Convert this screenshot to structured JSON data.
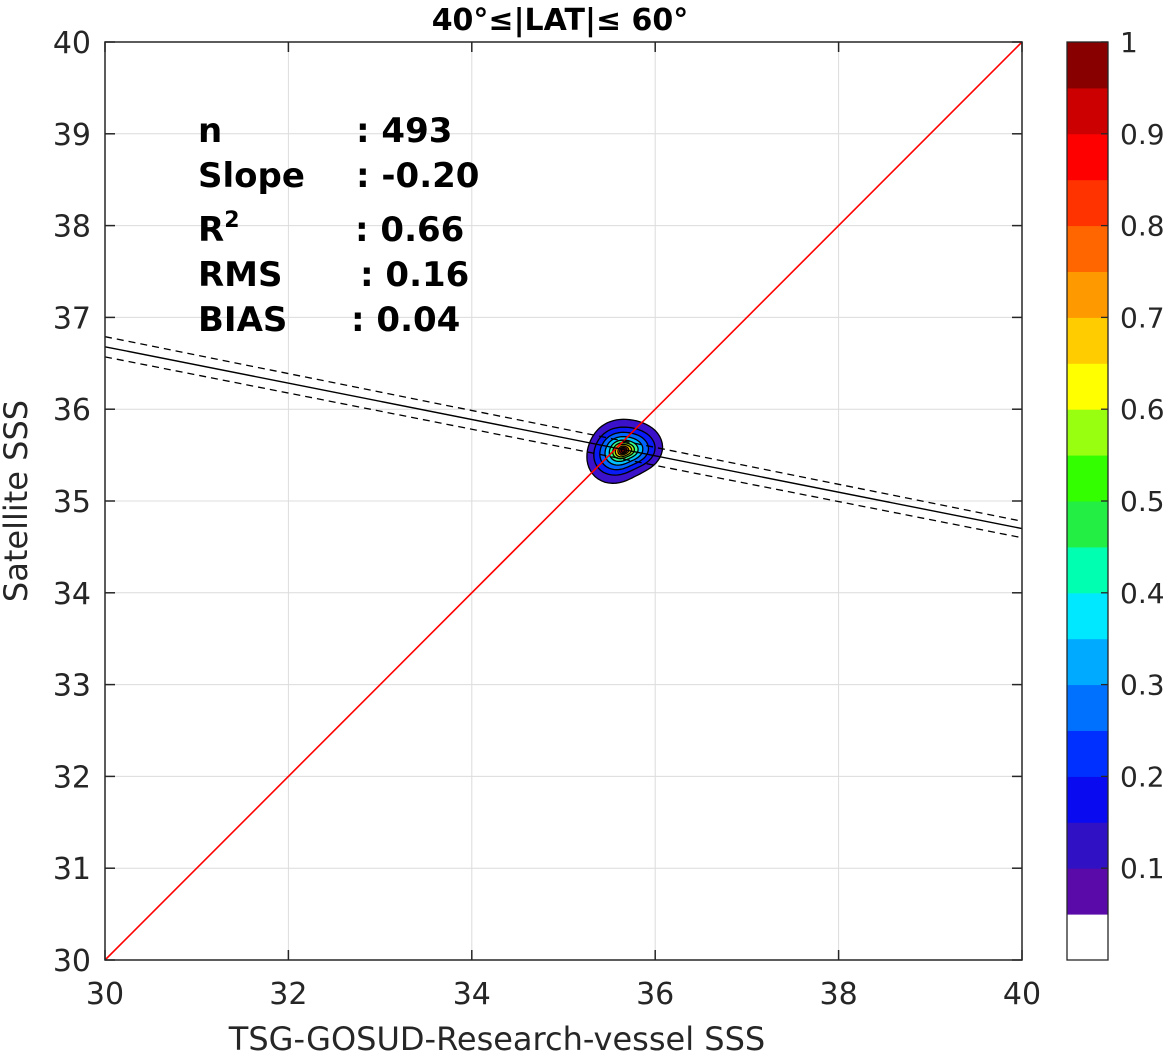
{
  "chart_data": {
    "type": "contour",
    "title": "40°≤|LAT|≤ 60°",
    "xlabel": "TSG-GOSUD-Research-vessel SSS",
    "ylabel": "Satellite SSS",
    "xlim": [
      30,
      40
    ],
    "ylim": [
      30,
      40
    ],
    "xticks": [
      "30",
      "32",
      "34",
      "36",
      "38",
      "40"
    ],
    "yticks": [
      "30",
      "31",
      "32",
      "33",
      "34",
      "35",
      "36",
      "37",
      "38",
      "39",
      "40"
    ],
    "grid": true,
    "stats": [
      {
        "label": "n",
        "value": ": 493"
      },
      {
        "label": "Slope",
        "value": ": -0.20"
      },
      {
        "label": "R",
        "sup": "2",
        "value": ": 0.66"
      },
      {
        "label": "RMS",
        "value": ": 0.16"
      },
      {
        "label": "BIAS",
        "value": ": 0.04"
      }
    ],
    "reference_line": {
      "name": "1:1",
      "x": [
        30,
        40
      ],
      "y": [
        30,
        40
      ],
      "color": "#ff0000"
    },
    "fit_line": {
      "x": [
        30,
        40
      ],
      "y": [
        36.68,
        34.7
      ],
      "color": "#000000"
    },
    "fit_bounds": [
      {
        "x": [
          30,
          40
        ],
        "y": [
          36.79,
          34.78
        ]
      },
      {
        "x": [
          30,
          40
        ],
        "y": [
          36.57,
          34.6
        ]
      }
    ],
    "density_center": {
      "x": 35.65,
      "y": 35.55
    },
    "contour_levels": [
      {
        "level": 0.1,
        "rx": 0.42,
        "ry": 0.36,
        "color": "#3b12c9"
      },
      {
        "level": 0.2,
        "rx": 0.34,
        "ry": 0.27,
        "color": "#0a1cf5"
      },
      {
        "level": 0.3,
        "rx": 0.27,
        "ry": 0.21,
        "color": "#0066ff"
      },
      {
        "level": 0.4,
        "rx": 0.21,
        "ry": 0.16,
        "color": "#00c0ff"
      },
      {
        "level": 0.5,
        "rx": 0.16,
        "ry": 0.12,
        "color": "#33ff90"
      },
      {
        "level": 0.6,
        "rx": 0.12,
        "ry": 0.09,
        "color": "#9cff20"
      },
      {
        "level": 0.7,
        "rx": 0.09,
        "ry": 0.07,
        "color": "#ffd000"
      },
      {
        "level": 0.8,
        "rx": 0.06,
        "ry": 0.05,
        "color": "#ff6a00"
      },
      {
        "level": 0.9,
        "rx": 0.04,
        "ry": 0.035,
        "color": "#d00000"
      },
      {
        "level": 1.0,
        "rx": 0.02,
        "ry": 0.02,
        "color": "#7a0000"
      }
    ],
    "colorbar": {
      "colors": [
        "#ffffff",
        "#5a0aa8",
        "#3111c4",
        "#0a0af0",
        "#0030ff",
        "#0070ff",
        "#00aaff",
        "#00e8ff",
        "#00ffb0",
        "#22ee44",
        "#33ff00",
        "#99ff11",
        "#ffff00",
        "#ffcc00",
        "#ff9900",
        "#ff6600",
        "#ff3300",
        "#ff0000",
        "#cc0000",
        "#880000"
      ],
      "ticks": [
        "0.1",
        "0.2",
        "0.3",
        "0.4",
        "0.5",
        "0.6",
        "0.7",
        "0.8",
        "0.9",
        "1"
      ],
      "range": [
        0,
        1
      ]
    }
  }
}
